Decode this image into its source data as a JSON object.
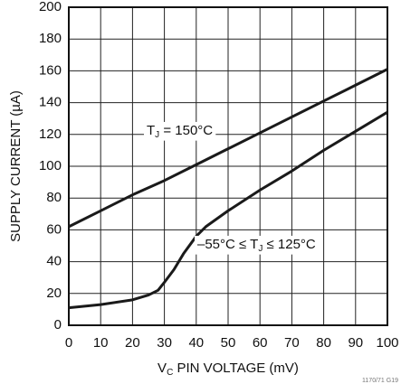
{
  "chart_data": {
    "type": "line",
    "y_label": "SUPPLY CURRENT (µA)",
    "x_label_parts": [
      "V",
      "C",
      " PIN VOLTAGE (mV)"
    ],
    "annotations": [
      {
        "parts": [
          "T",
          "J",
          " = 150°C"
        ]
      },
      {
        "parts": [
          "–55°C ≤ T",
          "J",
          " ≤ 125°C"
        ]
      }
    ],
    "footnote": "1170/71 G19",
    "xlim": [
      0,
      100
    ],
    "xticks": [
      0,
      10,
      20,
      30,
      40,
      50,
      60,
      70,
      80,
      90,
      100
    ],
    "ylim": [
      0,
      200
    ],
    "yticks": [
      0,
      20,
      40,
      60,
      80,
      100,
      120,
      140,
      160,
      180,
      200
    ],
    "grid": true,
    "series": [
      {
        "color": "#1a1a1a",
        "x": [
          0,
          10,
          20,
          30,
          40,
          50,
          60,
          70,
          80,
          90,
          100
        ],
        "values": [
          62,
          72,
          82,
          91,
          101,
          111,
          121,
          131,
          141,
          151,
          161
        ]
      },
      {
        "color": "#1a1a1a",
        "x": [
          0,
          10,
          20,
          25,
          28,
          30,
          33,
          36,
          40,
          43,
          50,
          60,
          70,
          80,
          90,
          100
        ],
        "values": [
          11,
          13,
          16,
          19,
          22,
          27,
          35,
          45,
          56,
          62,
          72,
          85,
          97,
          110,
          122,
          134
        ]
      }
    ]
  }
}
